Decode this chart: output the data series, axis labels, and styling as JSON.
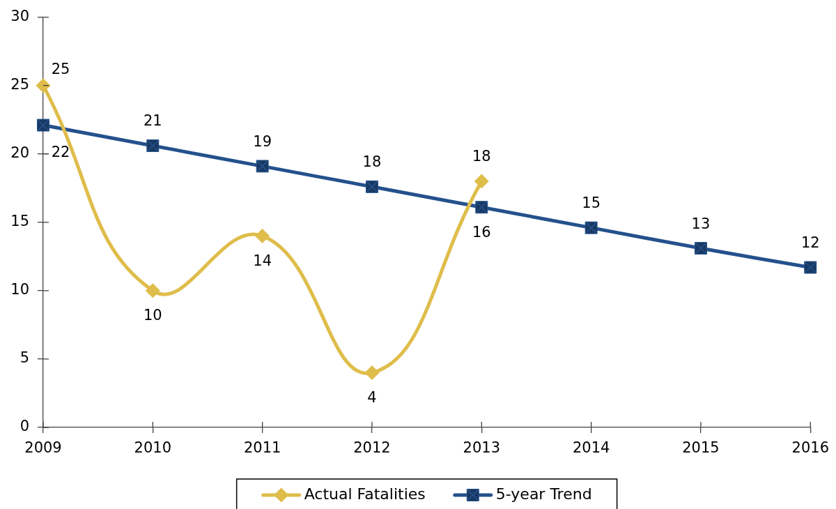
{
  "chart_data": {
    "type": "line",
    "categories": [
      "2009",
      "2010",
      "2011",
      "2012",
      "2013",
      "2014",
      "2015",
      "2016"
    ],
    "series": [
      {
        "name": "Actual Fatalities",
        "color": "#dfbd4a",
        "marker": "diamond",
        "values": [
          25,
          10,
          14,
          4,
          18,
          null,
          null,
          null
        ],
        "value_labels": [
          "25",
          "10",
          "14",
          "4",
          "18",
          null,
          null,
          null
        ]
      },
      {
        "name": "5-year Trend",
        "color": "#24518d",
        "marker": "square",
        "values": [
          22.1,
          20.6,
          19.1,
          17.6,
          16.1,
          14.6,
          13.1,
          11.7
        ],
        "value_labels": [
          "22",
          "21",
          "19",
          "18",
          "16",
          "15",
          "13",
          "12"
        ]
      }
    ],
    "ylim": [
      0,
      30
    ],
    "yticks": [
      0,
      5,
      10,
      15,
      20,
      25,
      30
    ],
    "legend": "bottom"
  }
}
